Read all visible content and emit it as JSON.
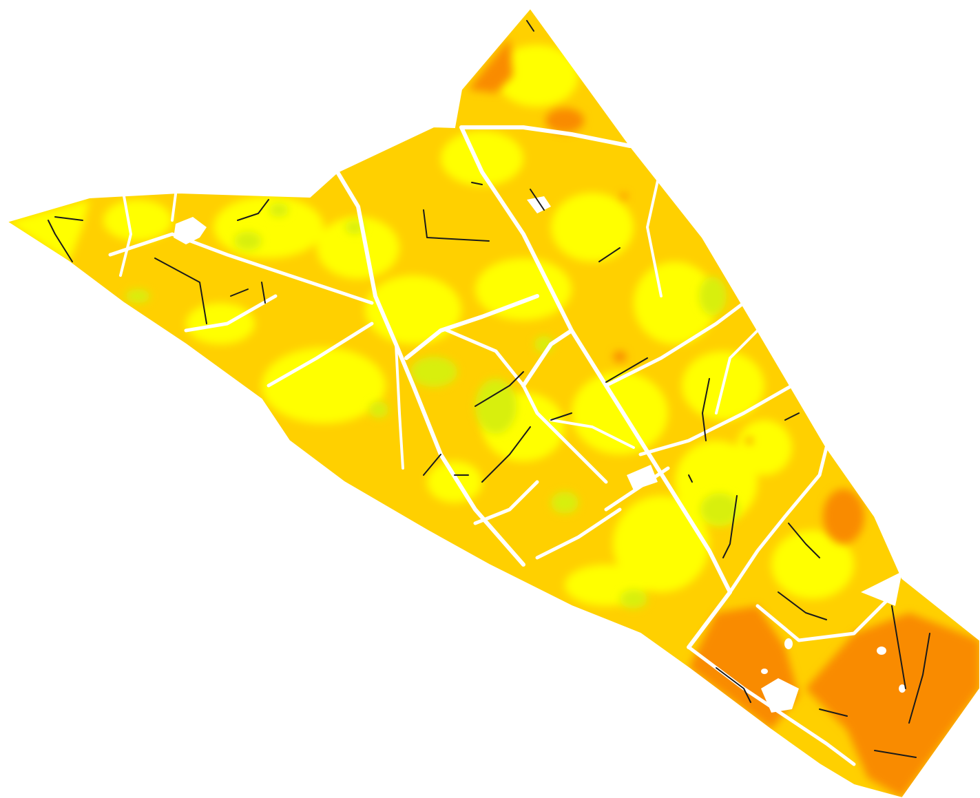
{
  "map": {
    "type": "field yield/soil variability map",
    "legend": "none",
    "labels": "none",
    "zone_colors": {
      "high": "#ffff00",
      "very_high": "#d8ef0a",
      "medium": "#ffd000",
      "low": "#ffb000",
      "very_low": "#f98b04",
      "background": "#ffffff",
      "drains": "#1a1a1a"
    }
  }
}
